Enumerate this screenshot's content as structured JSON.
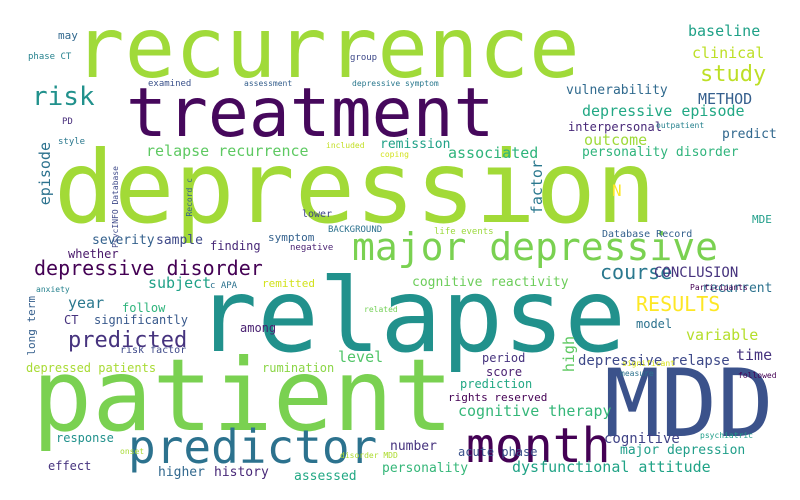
{
  "words": [
    {
      "text": "recurrence",
      "color": "#a0da39"
    },
    {
      "text": "treatment",
      "color": "#46085c"
    },
    {
      "text": "depression",
      "color": "#a2da37"
    },
    {
      "text": "relapse",
      "color": "#21918c"
    },
    {
      "text": "patient",
      "color": "#7ad151"
    },
    {
      "text": "MDD",
      "color": "#3b528b"
    },
    {
      "text": "major depressive",
      "color": "#7ad151"
    },
    {
      "text": "predictor",
      "color": "#2c728e"
    },
    {
      "text": "month",
      "color": "#440154"
    },
    {
      "text": "depressive disorder",
      "color": "#440154"
    },
    {
      "text": "risk",
      "color": "#21918c"
    },
    {
      "text": "study",
      "color": "#bddf26"
    },
    {
      "text": "RESULTS",
      "color": "#fde725"
    },
    {
      "text": "predicted",
      "color": "#46337e"
    },
    {
      "text": "course",
      "color": "#2a788e"
    },
    {
      "text": "baseline",
      "color": "#1fa187"
    },
    {
      "text": "clinical",
      "color": "#bddf26"
    },
    {
      "text": "METHOD",
      "color": "#355f8d"
    },
    {
      "text": "vulnerability",
      "color": "#306a8e"
    },
    {
      "text": "depressive episode",
      "color": "#22a884"
    },
    {
      "text": "outcome",
      "color": "#9fda3a"
    },
    {
      "text": "personality disorder",
      "color": "#2fb47c"
    },
    {
      "text": "associated",
      "color": "#2fb47c"
    },
    {
      "text": "relapse recurrence",
      "color": "#5ec962"
    },
    {
      "text": "remission",
      "color": "#1fa187"
    },
    {
      "text": "interpersonal",
      "color": "#482878"
    },
    {
      "text": "predict",
      "color": "#31688e"
    },
    {
      "text": "episode",
      "color": "#2c728e"
    },
    {
      "text": "factor",
      "color": "#2a788e"
    },
    {
      "text": "N",
      "color": "#fde725"
    },
    {
      "text": "subject",
      "color": "#1fa187"
    },
    {
      "text": "CONCLUSION",
      "color": "#46337e"
    },
    {
      "text": "recurrent",
      "color": "#2c728e"
    },
    {
      "text": "variable",
      "color": "#b5de2b"
    },
    {
      "text": "level",
      "color": "#52c569"
    },
    {
      "text": "year",
      "color": "#2a788e"
    },
    {
      "text": "sample",
      "color": "#3e4989"
    },
    {
      "text": "severity",
      "color": "#34618d"
    },
    {
      "text": "finding",
      "color": "#482878"
    },
    {
      "text": "symptom",
      "color": "#34618d"
    },
    {
      "text": "cognitive therapy",
      "color": "#35b779"
    },
    {
      "text": "cognitive reactivity",
      "color": "#6ccd5a"
    },
    {
      "text": "dysfunctional attitude",
      "color": "#20a386"
    },
    {
      "text": "high",
      "color": "#5ec962"
    },
    {
      "text": "time",
      "color": "#46337e"
    },
    {
      "text": "depressive relapse",
      "color": "#3e4989"
    },
    {
      "text": "cognitive",
      "color": "#414487"
    },
    {
      "text": "major depression",
      "color": "#1f9e89"
    },
    {
      "text": "acute phase",
      "color": "#3b528b"
    },
    {
      "text": "number",
      "color": "#46337e"
    },
    {
      "text": "personality",
      "color": "#35b779"
    },
    {
      "text": "assessed",
      "color": "#22a884"
    },
    {
      "text": "history",
      "color": "#482878"
    },
    {
      "text": "higher",
      "color": "#31688e"
    },
    {
      "text": "response",
      "color": "#21918c"
    },
    {
      "text": "effect",
      "color": "#46337e"
    },
    {
      "text": "period",
      "color": "#46337e"
    },
    {
      "text": "score",
      "color": "#481f70"
    },
    {
      "text": "prediction",
      "color": "#22a884"
    },
    {
      "text": "rights reserved",
      "color": "#440154"
    },
    {
      "text": "rumination",
      "color": "#8bd646"
    },
    {
      "text": "depressed patients",
      "color": "#a8db34"
    },
    {
      "text": "significantly",
      "color": "#38598c"
    },
    {
      "text": "follow",
      "color": "#2fb47c"
    },
    {
      "text": "model",
      "color": "#2c728e"
    },
    {
      "text": "among",
      "color": "#481f70"
    },
    {
      "text": "remitted",
      "color": "#d2e21b"
    },
    {
      "text": "CT",
      "color": "#46337e"
    },
    {
      "text": "long term",
      "color": "#355f8d"
    },
    {
      "text": "whether",
      "color": "#48186a"
    },
    {
      "text": "BACKGROUND",
      "color": "#2c728e"
    },
    {
      "text": "life events",
      "color": "#9bd93c"
    },
    {
      "text": "Database Record",
      "color": "#34618d"
    },
    {
      "text": "lower",
      "color": "#404688"
    },
    {
      "text": "negative",
      "color": "#481f70"
    },
    {
      "text": "MDE",
      "color": "#1f9e89"
    },
    {
      "text": "c APA",
      "color": "#2c728e"
    },
    {
      "text": "Participants",
      "color": "#440154"
    },
    {
      "text": "significant",
      "color": "#d8e219"
    },
    {
      "text": "measure",
      "color": "#2c728e"
    },
    {
      "text": "followed",
      "color": "#440154"
    },
    {
      "text": "related",
      "color": "#73d056"
    },
    {
      "text": "anxiety",
      "color": "#26828e"
    },
    {
      "text": "risk factor",
      "color": "#3e4989"
    },
    {
      "text": "PD",
      "color": "#472d7b"
    },
    {
      "text": "style",
      "color": "#2a788e"
    },
    {
      "text": "phase CT",
      "color": "#26828e"
    },
    {
      "text": "may",
      "color": "#31688e"
    },
    {
      "text": "examined",
      "color": "#3b528b"
    },
    {
      "text": "assessment",
      "color": "#355f8d"
    },
    {
      "text": "group",
      "color": "#3e4989"
    },
    {
      "text": "depressive symptom",
      "color": "#2a788e"
    },
    {
      "text": "included",
      "color": "#c2df23"
    },
    {
      "text": "coping",
      "color": "#d2e21b"
    },
    {
      "text": "outpatient",
      "color": "#26828e"
    },
    {
      "text": "psychiatric",
      "color": "#1f9e89"
    },
    {
      "text": "onset",
      "color": "#a8db34"
    },
    {
      "text": "disorder MDD",
      "color": "#addc30"
    },
    {
      "text": "PsycINFO Database",
      "color": "#3e4989"
    },
    {
      "text": "Record c",
      "color": "#355f8d"
    }
  ]
}
